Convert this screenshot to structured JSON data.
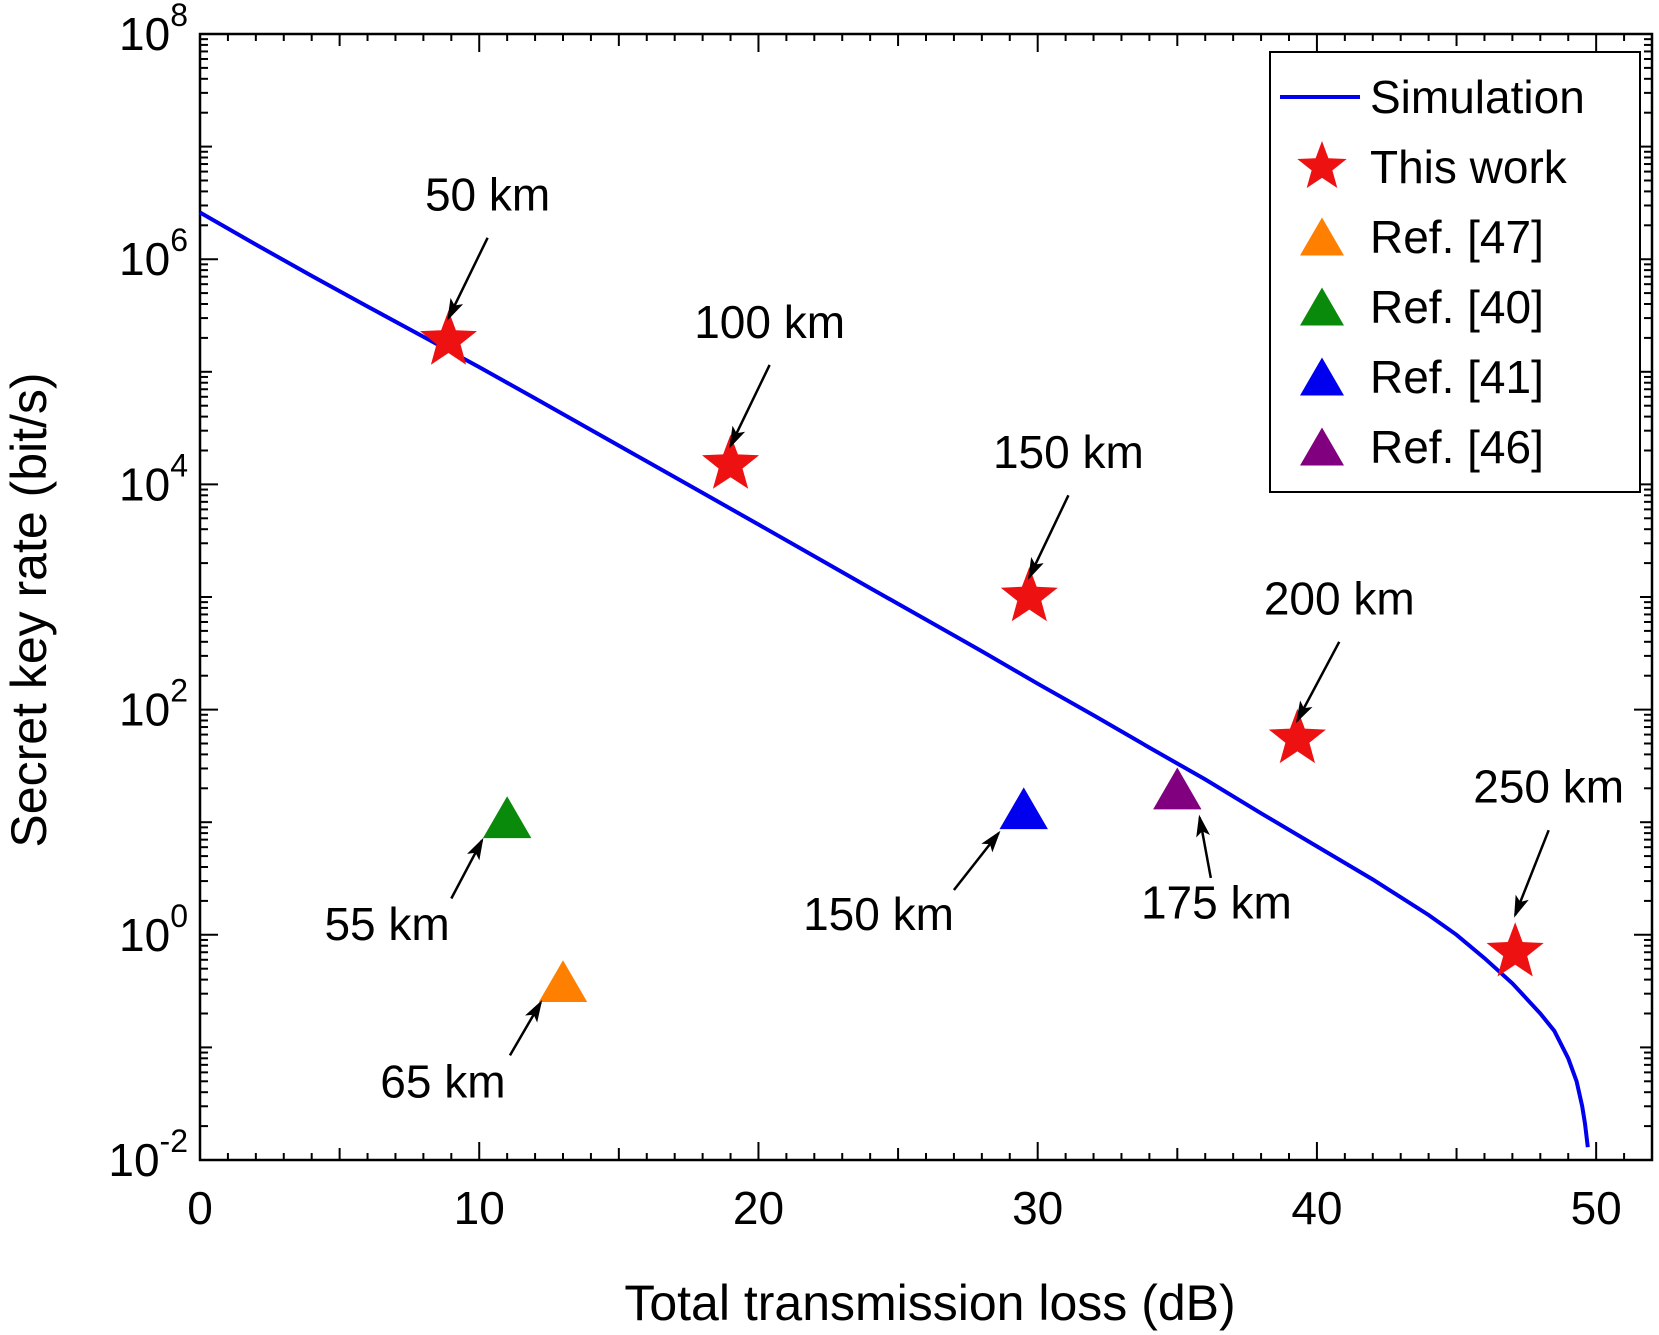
{
  "chart_data": {
    "type": "scatter",
    "xlabel": "Total transmission loss (dB)",
    "ylabel": "Secret key rate (bit/s)",
    "xlim": [
      0,
      52
    ],
    "ylim": [
      0.01,
      100000000
    ],
    "y_scale": "log",
    "x_ticks": [
      0,
      10,
      20,
      30,
      40,
      50
    ],
    "y_ticks": [
      {
        "base": "10",
        "exp": "-2",
        "value": 0.01
      },
      {
        "base": "10",
        "exp": "0",
        "value": 1
      },
      {
        "base": "10",
        "exp": "2",
        "value": 100
      },
      {
        "base": "10",
        "exp": "4",
        "value": 10000
      },
      {
        "base": "10",
        "exp": "6",
        "value": 1000000
      },
      {
        "base": "10",
        "exp": "8",
        "value": 100000000
      }
    ],
    "grid": false,
    "legend_position": "top-right",
    "series": [
      {
        "name": "Simulation",
        "kind": "line",
        "color": "#0000ee",
        "x": [
          0,
          2,
          4,
          6,
          8,
          10,
          12,
          14,
          16,
          18,
          20,
          22,
          24,
          26,
          28,
          30,
          32,
          34,
          36,
          38,
          40,
          42,
          44,
          45,
          46,
          47,
          48,
          48.5,
          49,
          49.3,
          49.5,
          49.6,
          49.7
        ],
        "y": [
          2600000,
          1350000,
          710000,
          380000,
          205000,
          110000,
          58000,
          30500,
          16000,
          8400,
          4400,
          2300,
          1200,
          630,
          330,
          170,
          89,
          46,
          24,
          12,
          6.1,
          3.1,
          1.5,
          1.0,
          0.62,
          0.37,
          0.2,
          0.14,
          0.08,
          0.05,
          0.03,
          0.021,
          0.013
        ]
      },
      {
        "name": "This work",
        "kind": "star",
        "color": "#ee1111",
        "points": [
          {
            "x": 8.9,
            "y": 190000
          },
          {
            "x": 19.0,
            "y": 15000
          },
          {
            "x": 29.7,
            "y": 1000
          },
          {
            "x": 39.3,
            "y": 55
          },
          {
            "x": 47.1,
            "y": 0.7
          }
        ]
      },
      {
        "name": "Ref. [47]",
        "kind": "triangle",
        "color": "#ff8000",
        "points": [
          {
            "x": 13.0,
            "y": 0.35
          }
        ]
      },
      {
        "name": "Ref. [40]",
        "kind": "triangle",
        "color": "#0a8a0a",
        "points": [
          {
            "x": 11.0,
            "y": 10
          }
        ]
      },
      {
        "name": "Ref. [41]",
        "kind": "triangle",
        "color": "#0000ee",
        "points": [
          {
            "x": 29.5,
            "y": 12
          }
        ]
      },
      {
        "name": "Ref. [46]",
        "kind": "triangle",
        "color": "#800080",
        "points": [
          {
            "x": 35.0,
            "y": 18
          }
        ]
      }
    ],
    "annotations": [
      {
        "text": "50 km",
        "label_x": 10.3,
        "label_y": 2700000,
        "tail_x": 10.3,
        "tail_y": 1550000,
        "head_x": 8.9,
        "head_y": 300000
      },
      {
        "text": "100 km",
        "label_x": 20.4,
        "label_y": 200000,
        "tail_x": 20.4,
        "tail_y": 115000,
        "head_x": 19.0,
        "head_y": 22000
      },
      {
        "text": "150 km",
        "label_x": 31.1,
        "label_y": 14000,
        "tail_x": 31.1,
        "tail_y": 8000,
        "head_x": 29.7,
        "head_y": 1500
      },
      {
        "text": "200 km",
        "label_x": 40.8,
        "label_y": 700,
        "tail_x": 40.8,
        "tail_y": 400,
        "head_x": 39.3,
        "head_y": 80
      },
      {
        "text": "250 km",
        "label_x": 48.3,
        "label_y": 15,
        "tail_x": 48.3,
        "tail_y": 8.5,
        "head_x": 47.1,
        "head_y": 1.5
      },
      {
        "text": "55 km",
        "label_x": 6.7,
        "label_y": 0.9,
        "tail_x": 9.0,
        "tail_y": 2.1,
        "head_x": 10.1,
        "head_y": 6.9
      },
      {
        "text": "65 km",
        "label_x": 8.7,
        "label_y": 0.036,
        "tail_x": 11.1,
        "tail_y": 0.085,
        "head_x": 12.2,
        "head_y": 0.25
      },
      {
        "text": "150 km",
        "label_x": 24.3,
        "label_y": 1.1,
        "tail_x": 27.0,
        "tail_y": 2.5,
        "head_x": 28.6,
        "head_y": 8
      },
      {
        "text": "175 km",
        "label_x": 36.4,
        "label_y": 1.4,
        "tail_x": 36.2,
        "tail_y": 3.2,
        "head_x": 35.8,
        "head_y": 11
      }
    ]
  }
}
